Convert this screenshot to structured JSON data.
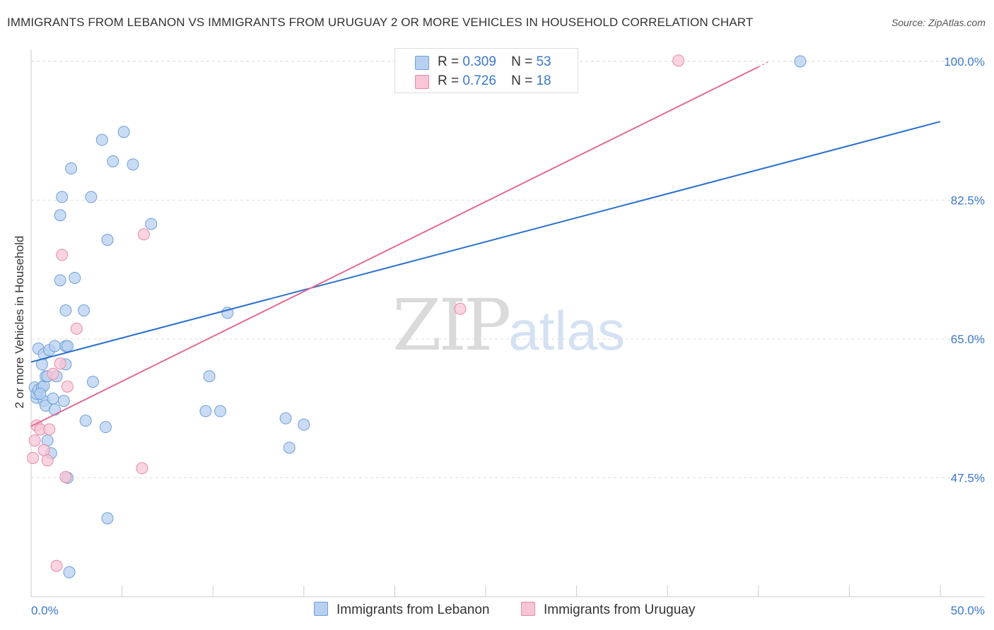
{
  "title": "IMMIGRANTS FROM LEBANON VS IMMIGRANTS FROM URUGUAY 2 OR MORE VEHICLES IN HOUSEHOLD CORRELATION CHART",
  "source": "Source: ZipAtlas.com",
  "watermark": {
    "zip": "ZIP",
    "atlas": "atlas"
  },
  "colors": {
    "lebanon_fill": "#b7d0f0",
    "lebanon_stroke": "#6f9fd8",
    "lebanon_line": "#2a6fcc",
    "uruguay_fill": "#f8c5d6",
    "uruguay_stroke": "#e58aab",
    "uruguay_line": "#e06c95",
    "value_text": "#3a78c9",
    "grid": "#dddddd"
  },
  "legend_top": [
    {
      "r_label": "R =",
      "r_value": "0.309",
      "n_label": "N =",
      "n_value": "53"
    },
    {
      "r_label": "R =",
      "r_value": "0.726",
      "n_label": "N =",
      "n_value": "18"
    }
  ],
  "chart_data": {
    "type": "scatter",
    "xlabel": "",
    "ylabel": "2 or more Vehicles in Household",
    "xlim": [
      0,
      50
    ],
    "ylim": [
      32.5,
      101.5
    ],
    "x_tick_labels": [
      "0.0%",
      "50.0%"
    ],
    "y_ticks": [
      47.5,
      65.0,
      82.5,
      100.0
    ],
    "y_tick_labels": [
      "47.5%",
      "65.0%",
      "82.5%",
      "100.0%"
    ],
    "grid": true,
    "series": [
      {
        "name": "Immigrants from Lebanon",
        "r": 0.309,
        "n": 53,
        "trend": {
          "x": [
            0,
            50
          ],
          "y": [
            62.1,
            92.4
          ]
        },
        "points": [
          [
            0.2,
            58.9
          ],
          [
            0.3,
            57.6
          ],
          [
            0.3,
            58.1
          ],
          [
            0.4,
            63.8
          ],
          [
            0.4,
            58.6
          ],
          [
            0.6,
            61.8
          ],
          [
            0.6,
            58.9
          ],
          [
            0.7,
            63.1
          ],
          [
            0.7,
            59.1
          ],
          [
            0.7,
            57.2
          ],
          [
            0.8,
            60.3
          ],
          [
            0.8,
            56.6
          ],
          [
            0.9,
            52.2
          ],
          [
            0.9,
            60.3
          ],
          [
            1.0,
            63.6
          ],
          [
            1.1,
            50.6
          ],
          [
            1.2,
            57.5
          ],
          [
            1.3,
            56.1
          ],
          [
            1.3,
            64.1
          ],
          [
            1.4,
            60.3
          ],
          [
            1.6,
            72.4
          ],
          [
            1.6,
            80.6
          ],
          [
            1.7,
            82.9
          ],
          [
            1.8,
            57.2
          ],
          [
            1.9,
            61.8
          ],
          [
            1.9,
            64.1
          ],
          [
            1.9,
            68.6
          ],
          [
            2.0,
            47.5
          ],
          [
            2.0,
            64.1
          ],
          [
            2.1,
            35.6
          ],
          [
            2.2,
            86.5
          ],
          [
            2.4,
            72.7
          ],
          [
            2.9,
            68.6
          ],
          [
            3.0,
            54.7
          ],
          [
            3.3,
            82.9
          ],
          [
            3.4,
            59.6
          ],
          [
            3.9,
            90.1
          ],
          [
            4.1,
            53.9
          ],
          [
            4.2,
            42.4
          ],
          [
            4.2,
            77.5
          ],
          [
            4.5,
            87.4
          ],
          [
            5.1,
            91.1
          ],
          [
            5.6,
            87.0
          ],
          [
            6.6,
            79.5
          ],
          [
            9.6,
            55.9
          ],
          [
            9.8,
            60.3
          ],
          [
            10.4,
            55.9
          ],
          [
            10.8,
            68.3
          ],
          [
            14.0,
            55.0
          ],
          [
            14.2,
            51.3
          ],
          [
            15.0,
            54.2
          ],
          [
            42.3,
            100.0
          ],
          [
            0.5,
            58.1
          ]
        ]
      },
      {
        "name": "Immigrants from Uruguay",
        "r": 0.726,
        "n": 18,
        "trend": {
          "x": [
            0,
            40
          ],
          "y": [
            54.0,
            99.3
          ]
        },
        "points": [
          [
            0.1,
            50.0
          ],
          [
            0.2,
            52.2
          ],
          [
            0.3,
            54.1
          ],
          [
            0.5,
            53.6
          ],
          [
            0.7,
            51.0
          ],
          [
            0.9,
            49.7
          ],
          [
            1.0,
            53.6
          ],
          [
            1.2,
            60.6
          ],
          [
            1.6,
            61.9
          ],
          [
            1.7,
            75.6
          ],
          [
            1.9,
            47.6
          ],
          [
            2.0,
            59.0
          ],
          [
            2.5,
            66.3
          ],
          [
            6.1,
            48.7
          ],
          [
            6.2,
            78.2
          ],
          [
            23.6,
            68.8
          ],
          [
            35.6,
            100.1
          ],
          [
            1.4,
            36.4
          ]
        ]
      }
    ]
  }
}
